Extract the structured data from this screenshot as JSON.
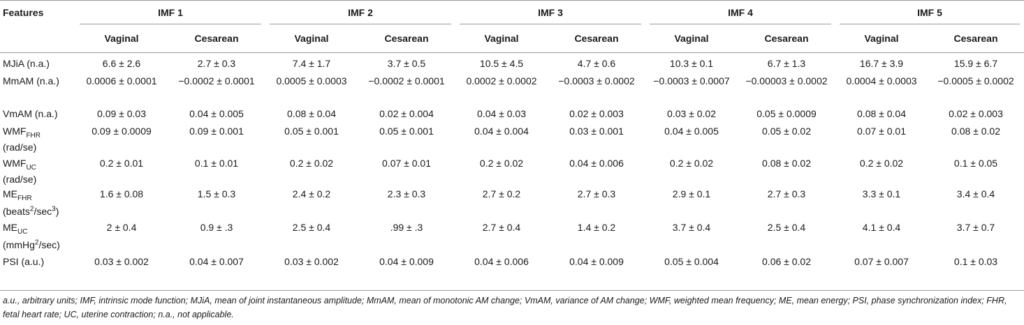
{
  "table": {
    "features_header": "Features",
    "groups": [
      "IMF 1",
      "IMF 2",
      "IMF 3",
      "IMF 4",
      "IMF 5"
    ],
    "subheaders": [
      "Vaginal",
      "Cesarean"
    ],
    "rows": [
      {
        "feature": "MJiA (n.a.)",
        "values": [
          "6.6 ± 2.6",
          "2.7 ± 0.3",
          "7.4 ± 1.7",
          "3.7 ± 0.5",
          "10.5 ± 4.5",
          "4.7 ± 0.6",
          "10.3 ± 0.1",
          "6.7 ± 1.3",
          "16.7 ± 3.9",
          "15.9 ± 6.7"
        ]
      },
      {
        "feature": "MmAM (n.a.)",
        "values": [
          "0.0006 ± 0.0001",
          "−0.0002 ± 0.0001",
          "0.0005 ± 0.0003",
          "−0.0002 ± 0.0001",
          "0.0002 ± 0.0002",
          "−0.0003 ± 0.0002",
          "−0.0003 ± 0.0007",
          "−0.00003 ± 0.0002",
          "0.0004 ± 0.0003",
          "−0.0005 ± 0.0002"
        ]
      },
      {
        "feature": "VmAM (n.a.)",
        "values": [
          "0.09 ± 0.03",
          "0.04 ± 0.005",
          "0.08 ± 0.04",
          "0.02 ± 0.004",
          "0.04 ± 0.03",
          "0.02 ± 0.003",
          "0.03 ± 0.02",
          "0.05 ± 0.0009",
          "0.08 ± 0.04",
          "0.02 ± 0.003"
        ]
      },
      {
        "feature_main": "WMF",
        "feature_sub": "FHR",
        "feature_unit": "(rad/se)",
        "values": [
          "0.09 ± 0.0009",
          "0.09 ± 0.001",
          "0.05 ± 0.001",
          "0.05 ± 0.001",
          "0.04 ± 0.004",
          "0.03 ± 0.001",
          "0.04 ± 0.005",
          "0.05 ± 0.02",
          "0.07 ± 0.01",
          "0.08 ± 0.02"
        ]
      },
      {
        "feature_main": "WMF",
        "feature_sub": "UC",
        "feature_unit": "(rad/se)",
        "values": [
          "0.2 ± 0.01",
          "0.1 ± 0.01",
          "0.2 ± 0.02",
          "0.07 ± 0.01",
          "0.2 ± 0.02",
          "0.04 ± 0.006",
          "0.2 ± 0.02",
          "0.08 ± 0.02",
          "0.2 ± 0.02",
          "0.1 ± 0.05"
        ]
      },
      {
        "feature_main": "ME",
        "feature_sub": "FHR",
        "unit_a": "(beats",
        "unit_sup1": "2",
        "unit_b": "/sec",
        "unit_sup2": "3",
        "unit_c": ")",
        "values": [
          "1.6 ± 0.08",
          "1.5 ± 0.3",
          "2.4 ± 0.2",
          "2.3 ± 0.3",
          "2.7 ± 0.2",
          "2.7 ± 0.3",
          "2.9 ± 0.1",
          "2.7 ± 0.3",
          "3.3 ± 0.1",
          "3.4 ± 0.4"
        ]
      },
      {
        "feature_main": "ME",
        "feature_sub": "UC",
        "unit_a": "(mmHg",
        "unit_sup1": "2",
        "unit_b": "/sec)",
        "values": [
          "2 ± 0.4",
          "0.9 ± .3",
          "2.5 ± 0.4",
          ".99 ± .3",
          "2.7 ± 0.4",
          "1.4 ± 0.2",
          "3.7 ± 0.4",
          "2.5 ± 0.4",
          "4.1 ± 0.4",
          "3.7 ± 0.7"
        ]
      },
      {
        "feature": "PSI (a.u.)",
        "values": [
          "0.03 ± 0.002",
          "0.04 ± 0.007",
          "0.03 ± 0.002",
          "0.04 ± 0.009",
          "0.04 ± 0.006",
          "0.04 ± 0.009",
          "0.05 ± 0.004",
          "0.06 ± 0.02",
          "0.07 ± 0.007",
          "0.1 ± 0.03"
        ]
      }
    ]
  },
  "footnote": "a.u., arbitrary units; IMF, intrinsic mode function; MJiA, mean of joint instantaneous amplitude; MmAM, mean of monotonic AM change; VmAM, variance of AM change; WMF, weighted mean frequency; ME, mean energy; PSI, phase synchronization index; FHR, fetal heart rate; UC, uterine contraction; n.a., not applicable."
}
